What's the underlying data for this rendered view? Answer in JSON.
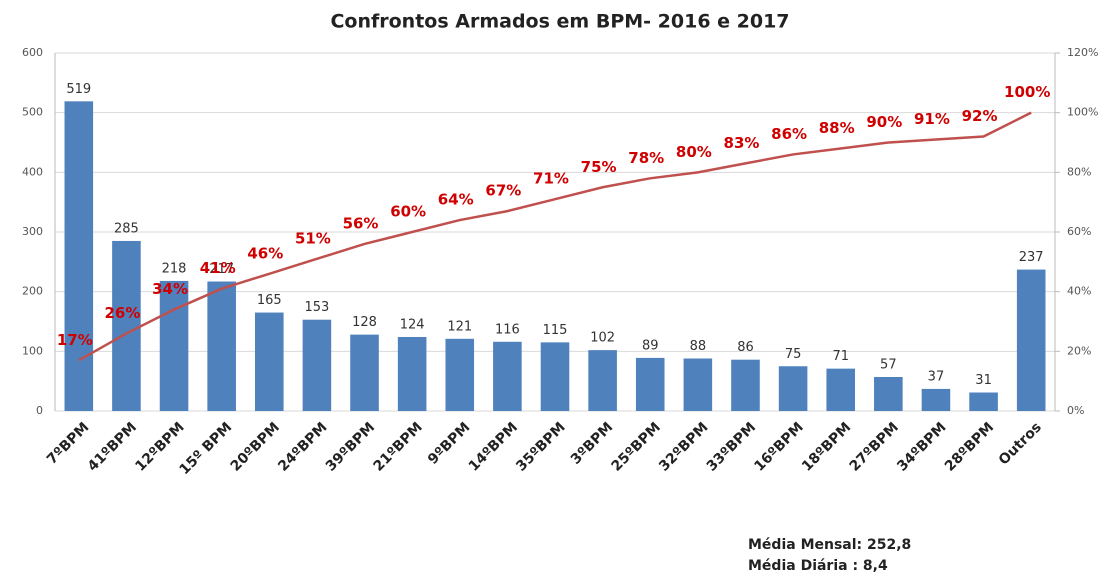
{
  "chart_data": {
    "type": "pareto",
    "title": "Confrontos Armados em BPM- 2016 e 2017",
    "categories": [
      "7ºBPM",
      "41ºBPM",
      "12ºBPM",
      "15º BPM",
      "20ºBPM",
      "24ºBPM",
      "39ºBPM",
      "21ºBPM",
      "9ºBPM",
      "14ºBPM",
      "35ºBPM",
      "3ºBPM",
      "25ºBPM",
      "32ºBPM",
      "33ºBPM",
      "16ºBPM",
      "18ºBPM",
      "27ºBPM",
      "34ºBPM",
      "28ºBPM",
      "Outros"
    ],
    "series": [
      {
        "type": "bar",
        "color": "#4f81bd",
        "axis": "y",
        "values": [
          519,
          285,
          218,
          217,
          165,
          153,
          128,
          124,
          121,
          116,
          115,
          102,
          89,
          88,
          86,
          75,
          71,
          57,
          37,
          31,
          237
        ]
      },
      {
        "type": "line",
        "color": "#c0504d",
        "axis": "y2",
        "values": [
          17,
          26,
          34,
          41,
          46,
          51,
          56,
          60,
          64,
          67,
          71,
          75,
          78,
          80,
          83,
          86,
          88,
          90,
          91,
          92,
          100
        ],
        "value_labels": [
          "17%",
          "26%",
          "34%",
          "41%",
          "46%",
          "51%",
          "56%",
          "60%",
          "64%",
          "67%",
          "71%",
          "75%",
          "78%",
          "80%",
          "83%",
          "86%",
          "88%",
          "90%",
          "91%",
          "92%",
          "100%"
        ]
      }
    ],
    "ylim": [
      0,
      600
    ],
    "yticks": [
      0,
      100,
      200,
      300,
      400,
      500,
      600
    ],
    "y2lim": [
      0,
      120
    ],
    "y2ticks": [
      {
        "value": 0,
        "label": "0%"
      },
      {
        "value": 20,
        "label": "20%"
      },
      {
        "value": 40,
        "label": "40%"
      },
      {
        "value": 60,
        "label": "60%"
      },
      {
        "value": 80,
        "label": "80%"
      },
      {
        "value": 100,
        "label": "100%"
      },
      {
        "value": 120,
        "label": "120%"
      }
    ],
    "grid": true,
    "annotations": [
      "Média Mensal: 252,8",
      "Média Diária : 8,4"
    ]
  }
}
